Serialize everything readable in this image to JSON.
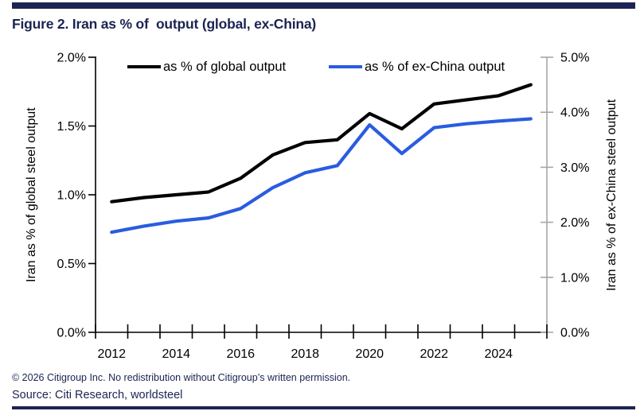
{
  "header": {
    "title": "Figure 2. Iran as % of  output (global, ex-China)"
  },
  "chart_data": {
    "type": "line",
    "title": "Figure 2. Iran as % of  output (global, ex-China)",
    "categories": [
      2012,
      2013,
      2014,
      2015,
      2016,
      2017,
      2018,
      2019,
      2020,
      2021,
      2022,
      2023,
      2024,
      2025
    ],
    "x_tick_labels": [
      "2012",
      "2014",
      "2016",
      "2018",
      "2020",
      "2022",
      "2024"
    ],
    "series": [
      {
        "name": "as % of global output",
        "axis": "left",
        "color": "#000000",
        "values": [
          0.95,
          0.98,
          1.0,
          1.02,
          1.12,
          1.29,
          1.38,
          1.4,
          1.59,
          1.48,
          1.66,
          1.69,
          1.72,
          1.8
        ]
      },
      {
        "name": "as % of ex-China output",
        "axis": "right",
        "color": "#2a5cdf",
        "values": [
          1.82,
          1.93,
          2.02,
          2.08,
          2.25,
          2.63,
          2.9,
          3.03,
          3.77,
          3.25,
          3.72,
          3.79,
          3.84,
          3.88
        ]
      }
    ],
    "left_axis": {
      "label": "Iran as % of global steel output",
      "min": 0,
      "max": 2,
      "tick_labels": [
        "0.0%",
        "0.5%",
        "1.0%",
        "1.5%",
        "2.0%"
      ]
    },
    "right_axis": {
      "label": "Iran as % of ex-China steel output",
      "min": 0,
      "max": 5,
      "tick_labels": [
        "0.0%",
        "1.0%",
        "2.0%",
        "3.0%",
        "4.0%",
        "5.0%"
      ]
    },
    "legend_position": "top",
    "grid": "off"
  },
  "footer": {
    "copyright": "© 2026 Citigroup Inc. No redistribution without Citigroup’s written permission.",
    "source": "Source: Citi Research, worldsteel"
  },
  "colors": {
    "navy": "#1b2452",
    "left_axis_line": "#000000",
    "right_axis_line": "#a6a6a6",
    "tick_text": "#000000"
  }
}
